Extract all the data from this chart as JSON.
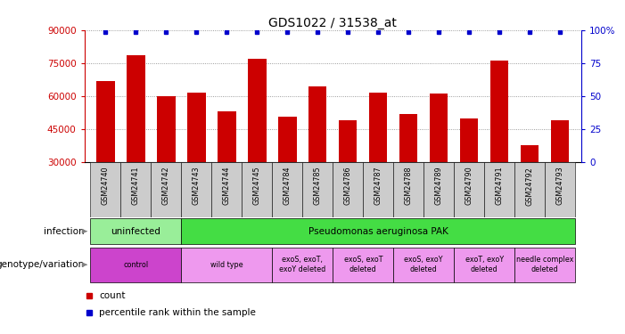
{
  "title": "GDS1022 / 31538_at",
  "samples": [
    "GSM24740",
    "GSM24741",
    "GSM24742",
    "GSM24743",
    "GSM24744",
    "GSM24745",
    "GSM24784",
    "GSM24785",
    "GSM24786",
    "GSM24787",
    "GSM24788",
    "GSM24789",
    "GSM24790",
    "GSM24791",
    "GSM24792",
    "GSM24793"
  ],
  "counts": [
    67000,
    78500,
    60000,
    61500,
    53000,
    77000,
    50500,
    64500,
    49000,
    61500,
    52000,
    61000,
    50000,
    76000,
    37500,
    49000
  ],
  "bar_color": "#cc0000",
  "dot_color": "#0000cc",
  "ylim_left": [
    30000,
    90000
  ],
  "yticks_left": [
    30000,
    45000,
    60000,
    75000,
    90000
  ],
  "ylim_right": [
    0,
    100
  ],
  "yticks_right": [
    0,
    25,
    50,
    75,
    100
  ],
  "infection_row": {
    "label": "infection",
    "groups": [
      {
        "text": "uninfected",
        "start": 0,
        "end": 3,
        "color": "#99ee99"
      },
      {
        "text": "Pseudomonas aeruginosa PAK",
        "start": 3,
        "end": 16,
        "color": "#44dd44"
      }
    ]
  },
  "genotype_row": {
    "label": "genotype/variation",
    "groups": [
      {
        "text": "control",
        "start": 0,
        "end": 3,
        "color": "#cc44cc"
      },
      {
        "text": "wild type",
        "start": 3,
        "end": 6,
        "color": "#ee99ee"
      },
      {
        "text": "exoS, exoT,\nexoY deleted",
        "start": 6,
        "end": 8,
        "color": "#ee99ee"
      },
      {
        "text": "exoS, exoT\ndeleted",
        "start": 8,
        "end": 10,
        "color": "#ee99ee"
      },
      {
        "text": "exoS, exoY\ndeleted",
        "start": 10,
        "end": 12,
        "color": "#ee99ee"
      },
      {
        "text": "exoT, exoY\ndeleted",
        "start": 12,
        "end": 14,
        "color": "#ee99ee"
      },
      {
        "text": "needle complex\ndeleted",
        "start": 14,
        "end": 16,
        "color": "#ee99ee"
      }
    ]
  },
  "legend_count_color": "#cc0000",
  "legend_pct_color": "#0000cc",
  "title_fontsize": 10,
  "axis_label_color_left": "#cc0000",
  "axis_label_color_right": "#0000cc",
  "sample_box_color": "#cccccc"
}
